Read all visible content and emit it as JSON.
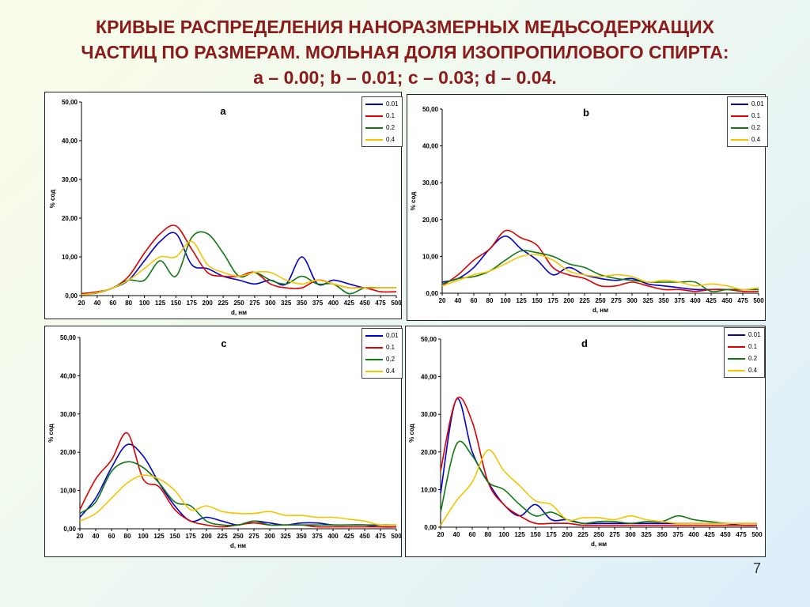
{
  "title": {
    "line1": "КРИВЫЕ РАСПРЕДЕЛЕНИЯ НАНОРАЗМЕРНЫХ МЕДЬСОДЕРЖАЩИХ",
    "line2": "ЧАСТИЦ ПО РАЗМЕРАМ. МОЛЬНАЯ ДОЛЯ ИЗОПРОПИЛОВОГО СПИРТА:",
    "line3": "a – 0.00; b – 0.01; c – 0.03; d – 0.04."
  },
  "page_number": "7",
  "colors": {
    "0.01": "#0000cc",
    "0.1": "#dd0000",
    "0.2": "#117711",
    "0.4": "#f5c400"
  },
  "chart_data": [
    {
      "type": "line",
      "panel_label": "a",
      "xlabel": "d, нм",
      "ylabel": "% сод",
      "ylim": [
        0,
        50
      ],
      "yticks": [
        "0,00",
        "10,00",
        "20,00",
        "30,00",
        "40,00",
        "50,00"
      ],
      "categories": [
        20,
        40,
        60,
        80,
        100,
        125,
        150,
        175,
        200,
        225,
        250,
        275,
        300,
        325,
        350,
        375,
        400,
        425,
        450,
        475,
        500
      ],
      "legend_position": "top-right",
      "series": [
        {
          "name": "0.01",
          "color": "#0000cc",
          "values": [
            0.3,
            0.8,
            2,
            4,
            9,
            14,
            16,
            8,
            7,
            5,
            4,
            3,
            4,
            3,
            10,
            3,
            4,
            3,
            2,
            2,
            2
          ]
        },
        {
          "name": "0.1",
          "color": "#dd0000",
          "values": [
            0.5,
            1,
            2,
            5,
            11,
            16,
            18,
            12,
            6,
            5,
            5,
            6,
            3,
            2,
            2,
            4,
            3,
            2,
            2,
            1,
            1
          ]
        },
        {
          "name": "0.2",
          "color": "#117711",
          "values": [
            0.3,
            0.7,
            2,
            4,
            4,
            9,
            5,
            15,
            16,
            11,
            5,
            6,
            4,
            3,
            5,
            3,
            3,
            0.5,
            2,
            2,
            2
          ]
        },
        {
          "name": "0.4",
          "color": "#f5c400",
          "values": [
            0.2,
            0.8,
            2,
            4,
            7,
            10,
            10,
            14,
            8,
            6,
            5,
            6,
            6,
            4,
            3,
            4,
            3,
            2,
            2,
            2,
            2
          ]
        }
      ]
    },
    {
      "type": "line",
      "panel_label": "b",
      "xlabel": "d, нм",
      "ylabel": "% сод",
      "ylim": [
        0,
        50
      ],
      "yticks": [
        "0,00",
        "10,00",
        "20,00",
        "30,00",
        "40,00",
        "50,00"
      ],
      "categories": [
        20,
        40,
        60,
        80,
        100,
        125,
        150,
        175,
        200,
        225,
        250,
        275,
        300,
        325,
        350,
        375,
        400,
        425,
        450,
        475,
        500
      ],
      "legend_position": "top-right",
      "series": [
        {
          "name": "0.01",
          "color": "#0000cc",
          "values": [
            3,
            4,
            7,
            12,
            15.5,
            12,
            9,
            5,
            7,
            5,
            4,
            3.5,
            4,
            2.5,
            2,
            1.5,
            1,
            1,
            1,
            1,
            1
          ]
        },
        {
          "name": "0.1",
          "color": "#dd0000",
          "values": [
            2,
            5,
            9,
            12,
            17,
            15,
            13,
            7,
            5,
            4,
            2,
            2,
            3,
            2,
            1,
            1,
            0.5,
            1,
            1,
            0.5,
            0.5
          ]
        },
        {
          "name": "0.2",
          "color": "#117711",
          "values": [
            2.5,
            4,
            4.5,
            6,
            9,
            11.5,
            11,
            10,
            8,
            7,
            5,
            4,
            3.5,
            3,
            3,
            3,
            3,
            0.5,
            1,
            1,
            1
          ]
        },
        {
          "name": "0.4",
          "color": "#f5c400",
          "values": [
            2,
            3.5,
            5,
            6,
            8,
            10,
            10.5,
            9,
            6,
            5,
            4.5,
            5,
            4.5,
            3,
            3.5,
            3,
            2,
            2.5,
            2,
            1,
            1.5
          ]
        }
      ]
    },
    {
      "type": "line",
      "panel_label": "c",
      "xlabel": "d, нм",
      "ylabel": "% сод",
      "ylim": [
        0,
        50
      ],
      "yticks": [
        "0,00",
        "10,00",
        "20,00",
        "30,00",
        "40,00",
        "50,00"
      ],
      "categories": [
        20,
        40,
        60,
        80,
        100,
        125,
        150,
        175,
        200,
        225,
        250,
        275,
        300,
        325,
        350,
        375,
        400,
        425,
        450,
        475,
        500
      ],
      "legend_position": "top-right",
      "series": [
        {
          "name": "0.01",
          "color": "#0000cc",
          "values": [
            3,
            8,
            16,
            22,
            19,
            12,
            6,
            2,
            3,
            2,
            1,
            2,
            1.5,
            1,
            1.5,
            1.5,
            1,
            1,
            1,
            0.5,
            0.5
          ]
        },
        {
          "name": "0.1",
          "color": "#dd0000",
          "values": [
            5,
            13,
            18,
            25,
            13,
            11,
            5,
            2,
            1,
            0.5,
            1,
            1.5,
            1,
            1,
            1,
            0.5,
            0.5,
            0.5,
            0.5,
            0.5,
            0.5
          ]
        },
        {
          "name": "0.2",
          "color": "#117711",
          "values": [
            4,
            7,
            15,
            17.5,
            16,
            12,
            7,
            6,
            2,
            1,
            1,
            2,
            1,
            1,
            1,
            1,
            1,
            1,
            1,
            1,
            1
          ]
        },
        {
          "name": "0.4",
          "color": "#f5c400",
          "values": [
            2,
            4,
            8,
            12,
            14,
            13,
            10,
            5,
            6,
            4.5,
            4,
            4,
            4.5,
            3.5,
            3.5,
            3,
            3,
            2.5,
            2,
            1,
            1
          ]
        }
      ]
    },
    {
      "type": "line",
      "panel_label": "d",
      "xlabel": "d, нм",
      "ylabel": "% сод",
      "ylim": [
        0,
        50
      ],
      "yticks": [
        "0,00",
        "10,00",
        "20,00",
        "30,00",
        "40,00",
        "50,00"
      ],
      "categories": [
        20,
        40,
        60,
        80,
        100,
        125,
        150,
        175,
        200,
        225,
        250,
        275,
        300,
        325,
        350,
        375,
        400,
        425,
        450,
        475,
        500
      ],
      "legend_position": "top-right",
      "series": [
        {
          "name": "0.01",
          "color": "#0000cc",
          "values": [
            9,
            34,
            20,
            12,
            6,
            3,
            6,
            2,
            2,
            1,
            1,
            1,
            1,
            1,
            1,
            1,
            1,
            1,
            1,
            0.5,
            0.5
          ]
        },
        {
          "name": "0.1",
          "color": "#dd0000",
          "values": [
            15,
            34,
            28,
            12,
            6,
            3,
            1,
            1,
            1,
            0.5,
            0.5,
            0.5,
            0.5,
            0.5,
            0.5,
            0.5,
            0.5,
            0.5,
            0.5,
            0.5,
            0.5
          ]
        },
        {
          "name": "0.2",
          "color": "#117711",
          "values": [
            4,
            22,
            19,
            12,
            10,
            6,
            3,
            4,
            2,
            1,
            1.5,
            1.5,
            1,
            1.5,
            1.5,
            3,
            2,
            1.5,
            1,
            1,
            1
          ]
        },
        {
          "name": "0.4",
          "color": "#f5c400",
          "values": [
            0.5,
            7,
            12,
            20.5,
            15,
            11,
            7,
            6,
            2,
            2.5,
            2.5,
            2,
            3,
            2,
            1.5,
            1,
            1,
            1,
            1,
            1,
            1
          ]
        }
      ]
    }
  ]
}
